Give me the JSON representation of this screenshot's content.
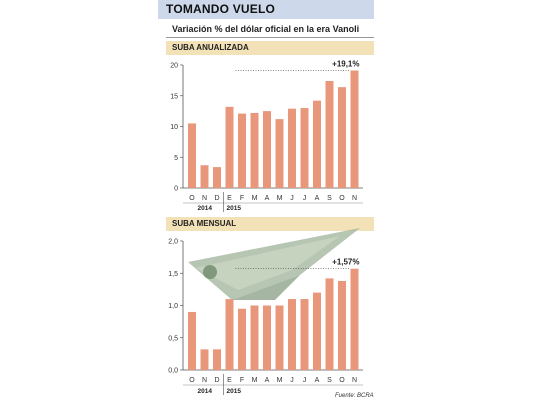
{
  "header": {
    "title": "TOMANDO VUELO",
    "subtitle": "Variación % del dólar oficial en la era Vanoli"
  },
  "footnote": "Fuente: BCRA",
  "colors": {
    "bar": "#e8977a",
    "band": "#f3e2b8",
    "title_bg": "#cdd9ea"
  },
  "chart_data": [
    {
      "type": "bar",
      "title": "SUBA ANUALIZADA",
      "categories": [
        "O",
        "N",
        "D",
        "E",
        "F",
        "M",
        "A",
        "M",
        "J",
        "J",
        "A",
        "S",
        "O",
        "N"
      ],
      "year_groups": [
        "2014",
        "2015"
      ],
      "values": [
        10.5,
        3.7,
        3.4,
        13.2,
        12.1,
        12.2,
        12.5,
        11.2,
        12.9,
        13.0,
        14.2,
        17.4,
        16.4,
        19.1
      ],
      "ylim": [
        0,
        20
      ],
      "yticks": [
        "0",
        "5",
        "10",
        "15",
        "20"
      ],
      "last_label": "+19,1%",
      "grid": false
    },
    {
      "type": "bar",
      "title": "SUBA MENSUAL",
      "categories": [
        "O",
        "N",
        "D",
        "E",
        "F",
        "M",
        "A",
        "M",
        "J",
        "J",
        "A",
        "S",
        "O",
        "N"
      ],
      "year_groups": [
        "2014",
        "2015"
      ],
      "values": [
        0.9,
        0.32,
        0.32,
        1.1,
        0.95,
        1.0,
        1.0,
        1.0,
        1.1,
        1.1,
        1.2,
        1.42,
        1.38,
        1.57
      ],
      "ylim": [
        0,
        2.0
      ],
      "yticks": [
        "0,0",
        "0,5",
        "1,0",
        "1,5",
        "2,0"
      ],
      "last_label": "+1,57%",
      "grid": false
    }
  ]
}
